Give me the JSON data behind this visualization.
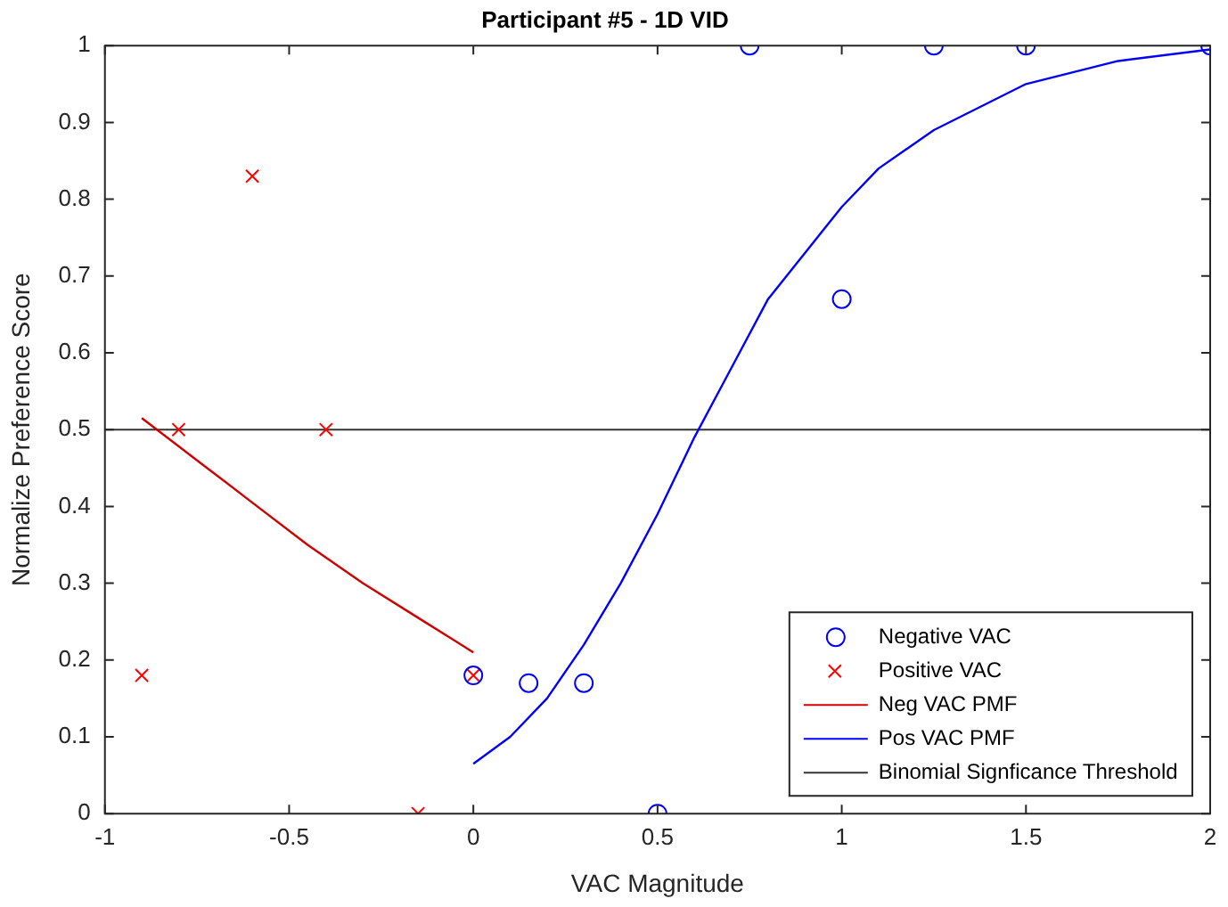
{
  "chart_data": {
    "type": "scatter",
    "title": "Participant #5 - 1D VID",
    "xlabel": "VAC Magnitude",
    "ylabel": "Normalize Preference Score",
    "xlim": [
      -1,
      2
    ],
    "xticks": [
      -1,
      -0.5,
      0,
      0.5,
      1,
      1.5,
      2
    ],
    "ylim": [
      0,
      1
    ],
    "yticks": [
      0,
      0.1,
      0.2,
      0.3,
      0.4,
      0.5,
      0.6,
      0.7,
      0.8,
      0.9,
      1
    ],
    "grid": false,
    "legend": "bottom right",
    "series": [
      {
        "name": "Negative VAC",
        "marker": "circle",
        "color": "#0000ff",
        "x": [
          0,
          0.15,
          0.3,
          0.5,
          0.75,
          1,
          1.25,
          1.5,
          2
        ],
        "values": [
          0.18,
          0.17,
          0.17,
          0,
          1,
          0.67,
          1,
          1,
          1
        ]
      },
      {
        "name": "Positive VAC",
        "marker": "cross",
        "color": "#ff0000",
        "x": [
          -0.9,
          -0.8,
          -0.6,
          -0.4,
          -0.15,
          0
        ],
        "values": [
          0.18,
          0.5,
          0.83,
          0.5,
          0,
          0.18
        ]
      },
      {
        "name": "Neg VAC PMF",
        "type": "line",
        "marker": "none",
        "color": "#d00000",
        "x": [
          -0.9,
          -0.75,
          -0.6,
          -0.45,
          -0.3,
          -0.15,
          0
        ],
        "values": [
          0.515,
          0.46,
          0.405,
          0.35,
          0.3,
          0.255,
          0.21
        ]
      },
      {
        "name": "Pos VAC PMF",
        "type": "line",
        "marker": "none",
        "color": "#0000ff",
        "x": [
          0,
          0.1,
          0.2,
          0.3,
          0.4,
          0.5,
          0.6,
          0.7,
          0.8,
          0.9,
          1,
          1.1,
          1.25,
          1.5,
          1.75,
          2
        ],
        "values": [
          0.065,
          0.1,
          0.15,
          0.22,
          0.3,
          0.39,
          0.49,
          0.58,
          0.67,
          0.73,
          0.79,
          0.84,
          0.89,
          0.95,
          0.98,
          0.995
        ]
      }
    ],
    "ref_lines": [
      {
        "axis": "y",
        "value": 0.5,
        "label": "Binomial Signficance Threshold",
        "color": "#333333"
      }
    ]
  }
}
